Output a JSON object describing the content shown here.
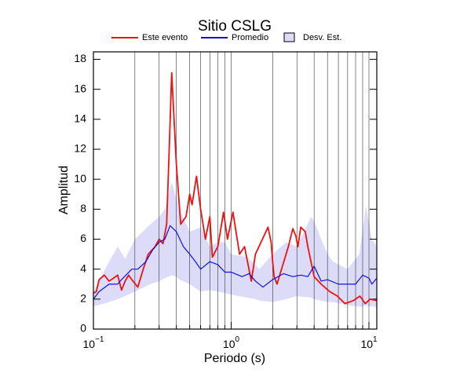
{
  "chart_data": {
    "type": "line",
    "title": "Sitio CSLG",
    "xlabel": "Periodo (s)",
    "ylabel": "Amplitud",
    "log_x": true,
    "x_grid": true,
    "legend": "top",
    "xlim": [
      0.1,
      11.4
    ],
    "ylim": [
      0,
      18.5
    ],
    "xticks": [
      {
        "value": 0.1,
        "label": "10^−1"
      },
      {
        "value": 1,
        "label": "10^0"
      },
      {
        "value": 10,
        "label": "10^1"
      }
    ],
    "x_minor_ticks": [
      0.2,
      0.3,
      0.4,
      0.5,
      0.6,
      0.7,
      0.8,
      0.9,
      2,
      3,
      4,
      5,
      6,
      7,
      8,
      9
    ],
    "yticks": [
      0,
      2,
      4,
      6,
      8,
      10,
      12,
      14,
      16,
      18
    ],
    "series": [
      {
        "name": "Desv. Est.",
        "kind": "band",
        "color": "#dcdcf8",
        "x": [
          0.1,
          0.13,
          0.15,
          0.17,
          0.2,
          0.26,
          0.3,
          0.33,
          0.37,
          0.4,
          0.42,
          0.5,
          0.6,
          0.7,
          0.8,
          0.9,
          1.0,
          1.3,
          1.5,
          1.6,
          2.0,
          2.5,
          3.0,
          3.8,
          4.0,
          4.5,
          5.0,
          5.5,
          7.0,
          8.5,
          9.0,
          9.5,
          10.5,
          11.4
        ],
        "lower": [
          1.5,
          1.8,
          2.0,
          2.2,
          2.5,
          3.0,
          3.2,
          3.4,
          3.6,
          3.5,
          3.3,
          3.0,
          2.5,
          2.6,
          2.5,
          2.4,
          2.3,
          2.1,
          2.0,
          1.9,
          1.8,
          2.0,
          2.2,
          2.1,
          2.0,
          1.9,
          1.8,
          1.8,
          1.6,
          1.5,
          1.5,
          1.6,
          1.5,
          1.5
        ],
        "upper": [
          2.5,
          4.5,
          5.5,
          4.7,
          6.0,
          7.0,
          7.5,
          8.0,
          9.8,
          8.7,
          8.0,
          6.5,
          6.8,
          5.5,
          5.8,
          5.8,
          5.0,
          4.8,
          4.3,
          4.0,
          5.0,
          5.8,
          5.5,
          7.5,
          7.2,
          6.0,
          5.0,
          4.5,
          4.0,
          5.0,
          6.5,
          8.2,
          6.0,
          5.5
        ]
      },
      {
        "name": "Este evento",
        "kind": "line",
        "color": "#ee1111",
        "x": [
          0.1,
          0.105,
          0.11,
          0.12,
          0.13,
          0.14,
          0.15,
          0.16,
          0.17,
          0.18,
          0.19,
          0.21,
          0.23,
          0.25,
          0.28,
          0.3,
          0.32,
          0.34,
          0.355,
          0.37,
          0.38,
          0.4,
          0.43,
          0.47,
          0.5,
          0.52,
          0.56,
          0.6,
          0.65,
          0.7,
          0.73,
          0.8,
          0.88,
          0.94,
          1.03,
          1.15,
          1.25,
          1.4,
          1.5,
          1.85,
          1.95,
          2.0,
          2.05,
          2.15,
          2.6,
          2.8,
          2.95,
          3.05,
          3.2,
          3.45,
          3.6,
          4.0,
          4.5,
          5.2,
          5.9,
          6.7,
          7.7,
          8.6,
          9.4,
          10.2,
          11.4
        ],
        "values": [
          2.4,
          2.5,
          3.3,
          3.6,
          3.2,
          3.4,
          3.6,
          2.6,
          3.2,
          3.6,
          3.3,
          2.8,
          4.0,
          5.0,
          5.5,
          6.0,
          5.7,
          7.0,
          12.0,
          17.1,
          15.0,
          11.0,
          7.0,
          7.5,
          9.0,
          8.3,
          10.2,
          8.0,
          6.0,
          7.5,
          4.8,
          5.5,
          7.8,
          6.0,
          7.8,
          5.0,
          5.5,
          3.2,
          5.0,
          6.8,
          5.8,
          4.5,
          3.5,
          3.0,
          5.5,
          6.7,
          6.2,
          5.5,
          6.8,
          6.5,
          5.5,
          3.5,
          3.0,
          2.5,
          2.2,
          1.7,
          1.9,
          2.2,
          1.7,
          2.0,
          1.9
        ]
      },
      {
        "name": "Promedio",
        "kind": "line",
        "color": "#1111dd",
        "x": [
          0.1,
          0.11,
          0.13,
          0.15,
          0.16,
          0.19,
          0.21,
          0.24,
          0.27,
          0.3,
          0.33,
          0.36,
          0.4,
          0.45,
          0.5,
          0.55,
          0.6,
          0.7,
          0.8,
          0.9,
          1.0,
          1.2,
          1.35,
          1.5,
          1.7,
          2.0,
          2.4,
          2.8,
          3.2,
          3.6,
          4.0,
          4.5,
          5.0,
          6.0,
          7.0,
          8.0,
          9.0,
          10.0,
          10.5,
          11.4
        ],
        "values": [
          2.0,
          2.5,
          3.0,
          3.0,
          3.3,
          4.0,
          4.0,
          4.5,
          5.3,
          5.8,
          6.0,
          6.9,
          6.5,
          5.5,
          5.0,
          4.5,
          4.0,
          4.5,
          4.3,
          3.8,
          3.8,
          3.5,
          3.7,
          3.2,
          2.8,
          3.3,
          3.7,
          3.5,
          3.6,
          3.5,
          4.2,
          3.2,
          3.3,
          3.0,
          3.0,
          3.0,
          3.6,
          3.4,
          3.0,
          3.4
        ]
      }
    ]
  }
}
